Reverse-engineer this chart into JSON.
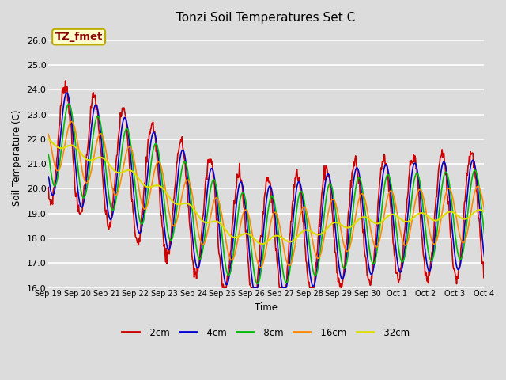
{
  "title": "Tonzi Soil Temperatures Set C",
  "xlabel": "Time",
  "ylabel": "Soil Temperature (C)",
  "ylim": [
    16.0,
    26.5
  ],
  "yticks": [
    16.0,
    17.0,
    18.0,
    19.0,
    20.0,
    21.0,
    22.0,
    23.0,
    24.0,
    25.0,
    26.0
  ],
  "bg_color": "#dcdcdc",
  "lines": [
    {
      "label": "-2cm",
      "color": "#cc0000",
      "lw": 1.2
    },
    {
      "label": "-4cm",
      "color": "#0000cc",
      "lw": 1.2
    },
    {
      "label": "-8cm",
      "color": "#00bb00",
      "lw": 1.2
    },
    {
      "label": "-16cm",
      "color": "#ff8800",
      "lw": 1.2
    },
    {
      "label": "-32cm",
      "color": "#dddd00",
      "lw": 1.5
    }
  ],
  "annotation_text": "TZ_fmet",
  "annotation_bg": "#ffffcc",
  "annotation_border": "#bbaa00",
  "annotation_text_color": "#880000",
  "tick_labels": [
    "Sep 19",
    "Sep 20",
    "Sep 21",
    "Sep 22",
    "Sep 23",
    "Sep 24",
    "Sep 25",
    "Sep 26",
    "Sep 27",
    "Sep 28",
    "Sep 29",
    "Sep 30",
    "Oct 1",
    "Oct 2",
    "Oct 3",
    "Oct 4"
  ]
}
